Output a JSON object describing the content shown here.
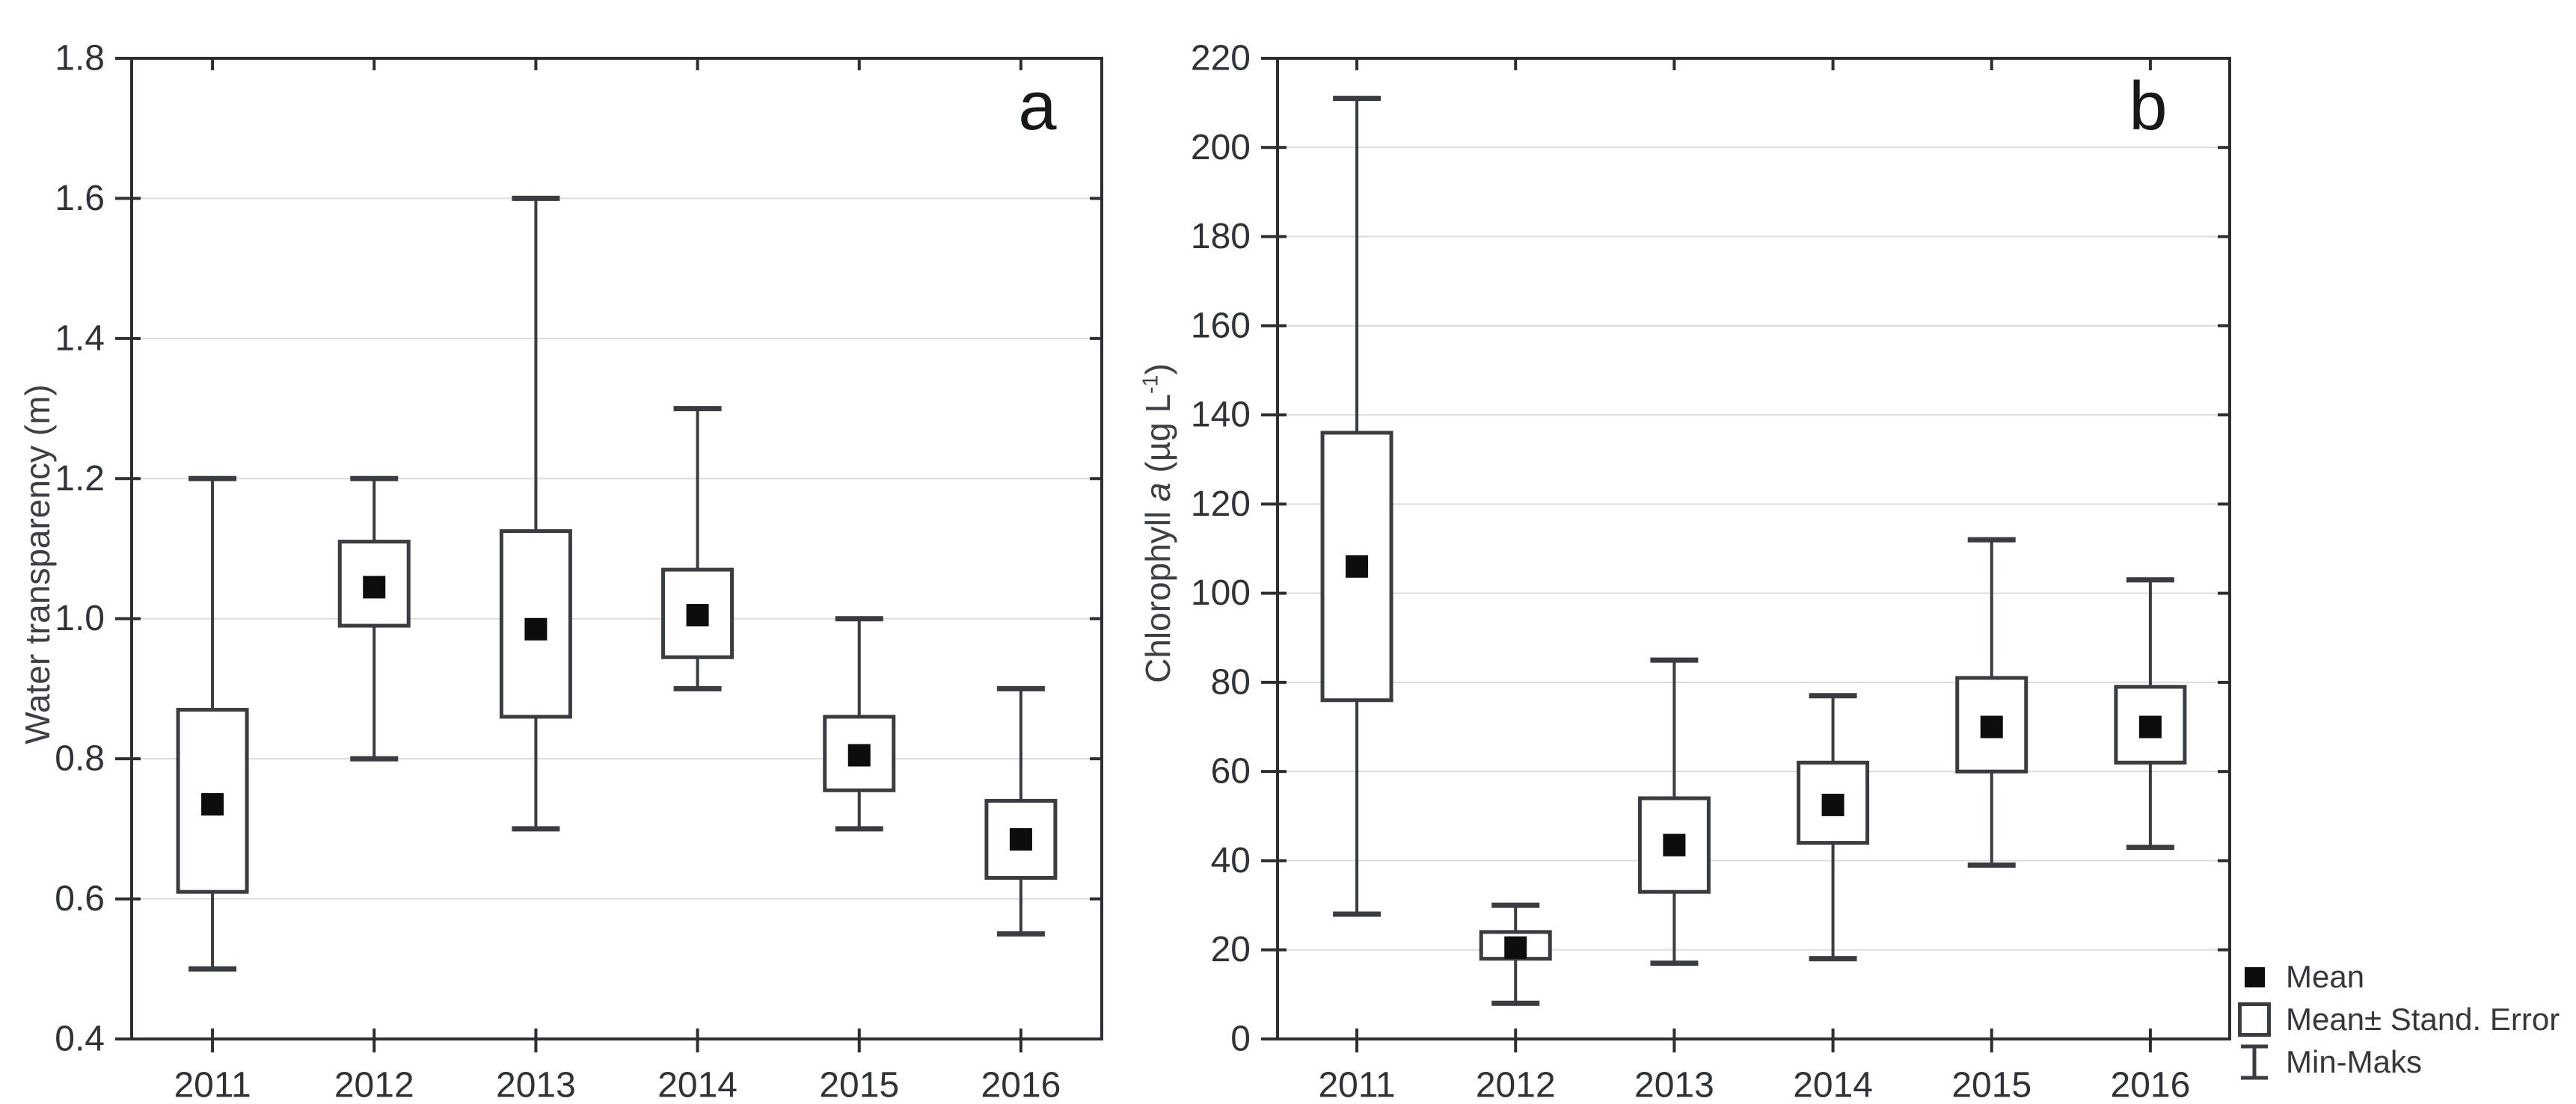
{
  "figure": {
    "background": "#ffffff"
  },
  "style": {
    "axis_color": "#2c2e31",
    "line_color": "#393d41",
    "grid_color": "#dcdcdc",
    "box_fill": "#ffffff",
    "mean_color": "#0d0d0d",
    "tick_text_color": "#2f3338",
    "axis_title_color": "#3b4046",
    "background": "#ffffff"
  },
  "legend": {
    "items": [
      {
        "icon": "mean-square",
        "label": "Mean"
      },
      {
        "icon": "se-box",
        "label": "Mean± Stand. Error"
      },
      {
        "icon": "minmax-whisker",
        "label": "Min-Maks"
      }
    ]
  },
  "chart_data": [
    {
      "type": "box",
      "panel_label": "a",
      "ylabel": "Water transparency (m)",
      "ylim": [
        0.4,
        1.8
      ],
      "ytick_step": 0.2,
      "ytick_decimals": 1,
      "grid": true,
      "categories": [
        "2011",
        "2012",
        "2013",
        "2014",
        "2015",
        "2016"
      ],
      "boxes": [
        {
          "category": "2011",
          "min": 0.5,
          "se_low": 0.61,
          "mean": 0.735,
          "se_high": 0.87,
          "max": 1.2
        },
        {
          "category": "2012",
          "min": 0.8,
          "se_low": 0.99,
          "mean": 1.045,
          "se_high": 1.11,
          "max": 1.2
        },
        {
          "category": "2013",
          "min": 0.7,
          "se_low": 0.86,
          "mean": 0.985,
          "se_high": 1.125,
          "max": 1.6
        },
        {
          "category": "2014",
          "min": 0.9,
          "se_low": 0.945,
          "mean": 1.005,
          "se_high": 1.07,
          "max": 1.3
        },
        {
          "category": "2015",
          "min": 0.7,
          "se_low": 0.755,
          "mean": 0.805,
          "se_high": 0.86,
          "max": 1.0
        },
        {
          "category": "2016",
          "min": 0.55,
          "se_low": 0.63,
          "mean": 0.685,
          "se_high": 0.74,
          "max": 0.9
        }
      ]
    },
    {
      "type": "box",
      "panel_label": "b",
      "ylabel": "Chlorophyll a (µg L-1)",
      "ylabel_parts": {
        "prefix": "Chlorophyll ",
        "italic": "a",
        "unit_open": " (µg L",
        "superscript": "-1",
        "close": ")"
      },
      "ylim": [
        0,
        220
      ],
      "ytick_step": 20,
      "ytick_decimals": 0,
      "grid": true,
      "categories": [
        "2011",
        "2012",
        "2013",
        "2014",
        "2015",
        "2016"
      ],
      "boxes": [
        {
          "category": "2011",
          "min": 28,
          "se_low": 76,
          "mean": 106,
          "se_high": 136,
          "max": 211
        },
        {
          "category": "2012",
          "min": 8,
          "se_low": 18,
          "mean": 20.5,
          "se_high": 24,
          "max": 30
        },
        {
          "category": "2013",
          "min": 17,
          "se_low": 33,
          "mean": 43.5,
          "se_high": 54,
          "max": 85
        },
        {
          "category": "2014",
          "min": 18,
          "se_low": 44,
          "mean": 52.5,
          "se_high": 62,
          "max": 77
        },
        {
          "category": "2015",
          "min": 39,
          "se_low": 60,
          "mean": 70,
          "se_high": 81,
          "max": 112
        },
        {
          "category": "2016",
          "min": 43,
          "se_low": 62,
          "mean": 70,
          "se_high": 79,
          "max": 103
        }
      ]
    }
  ]
}
